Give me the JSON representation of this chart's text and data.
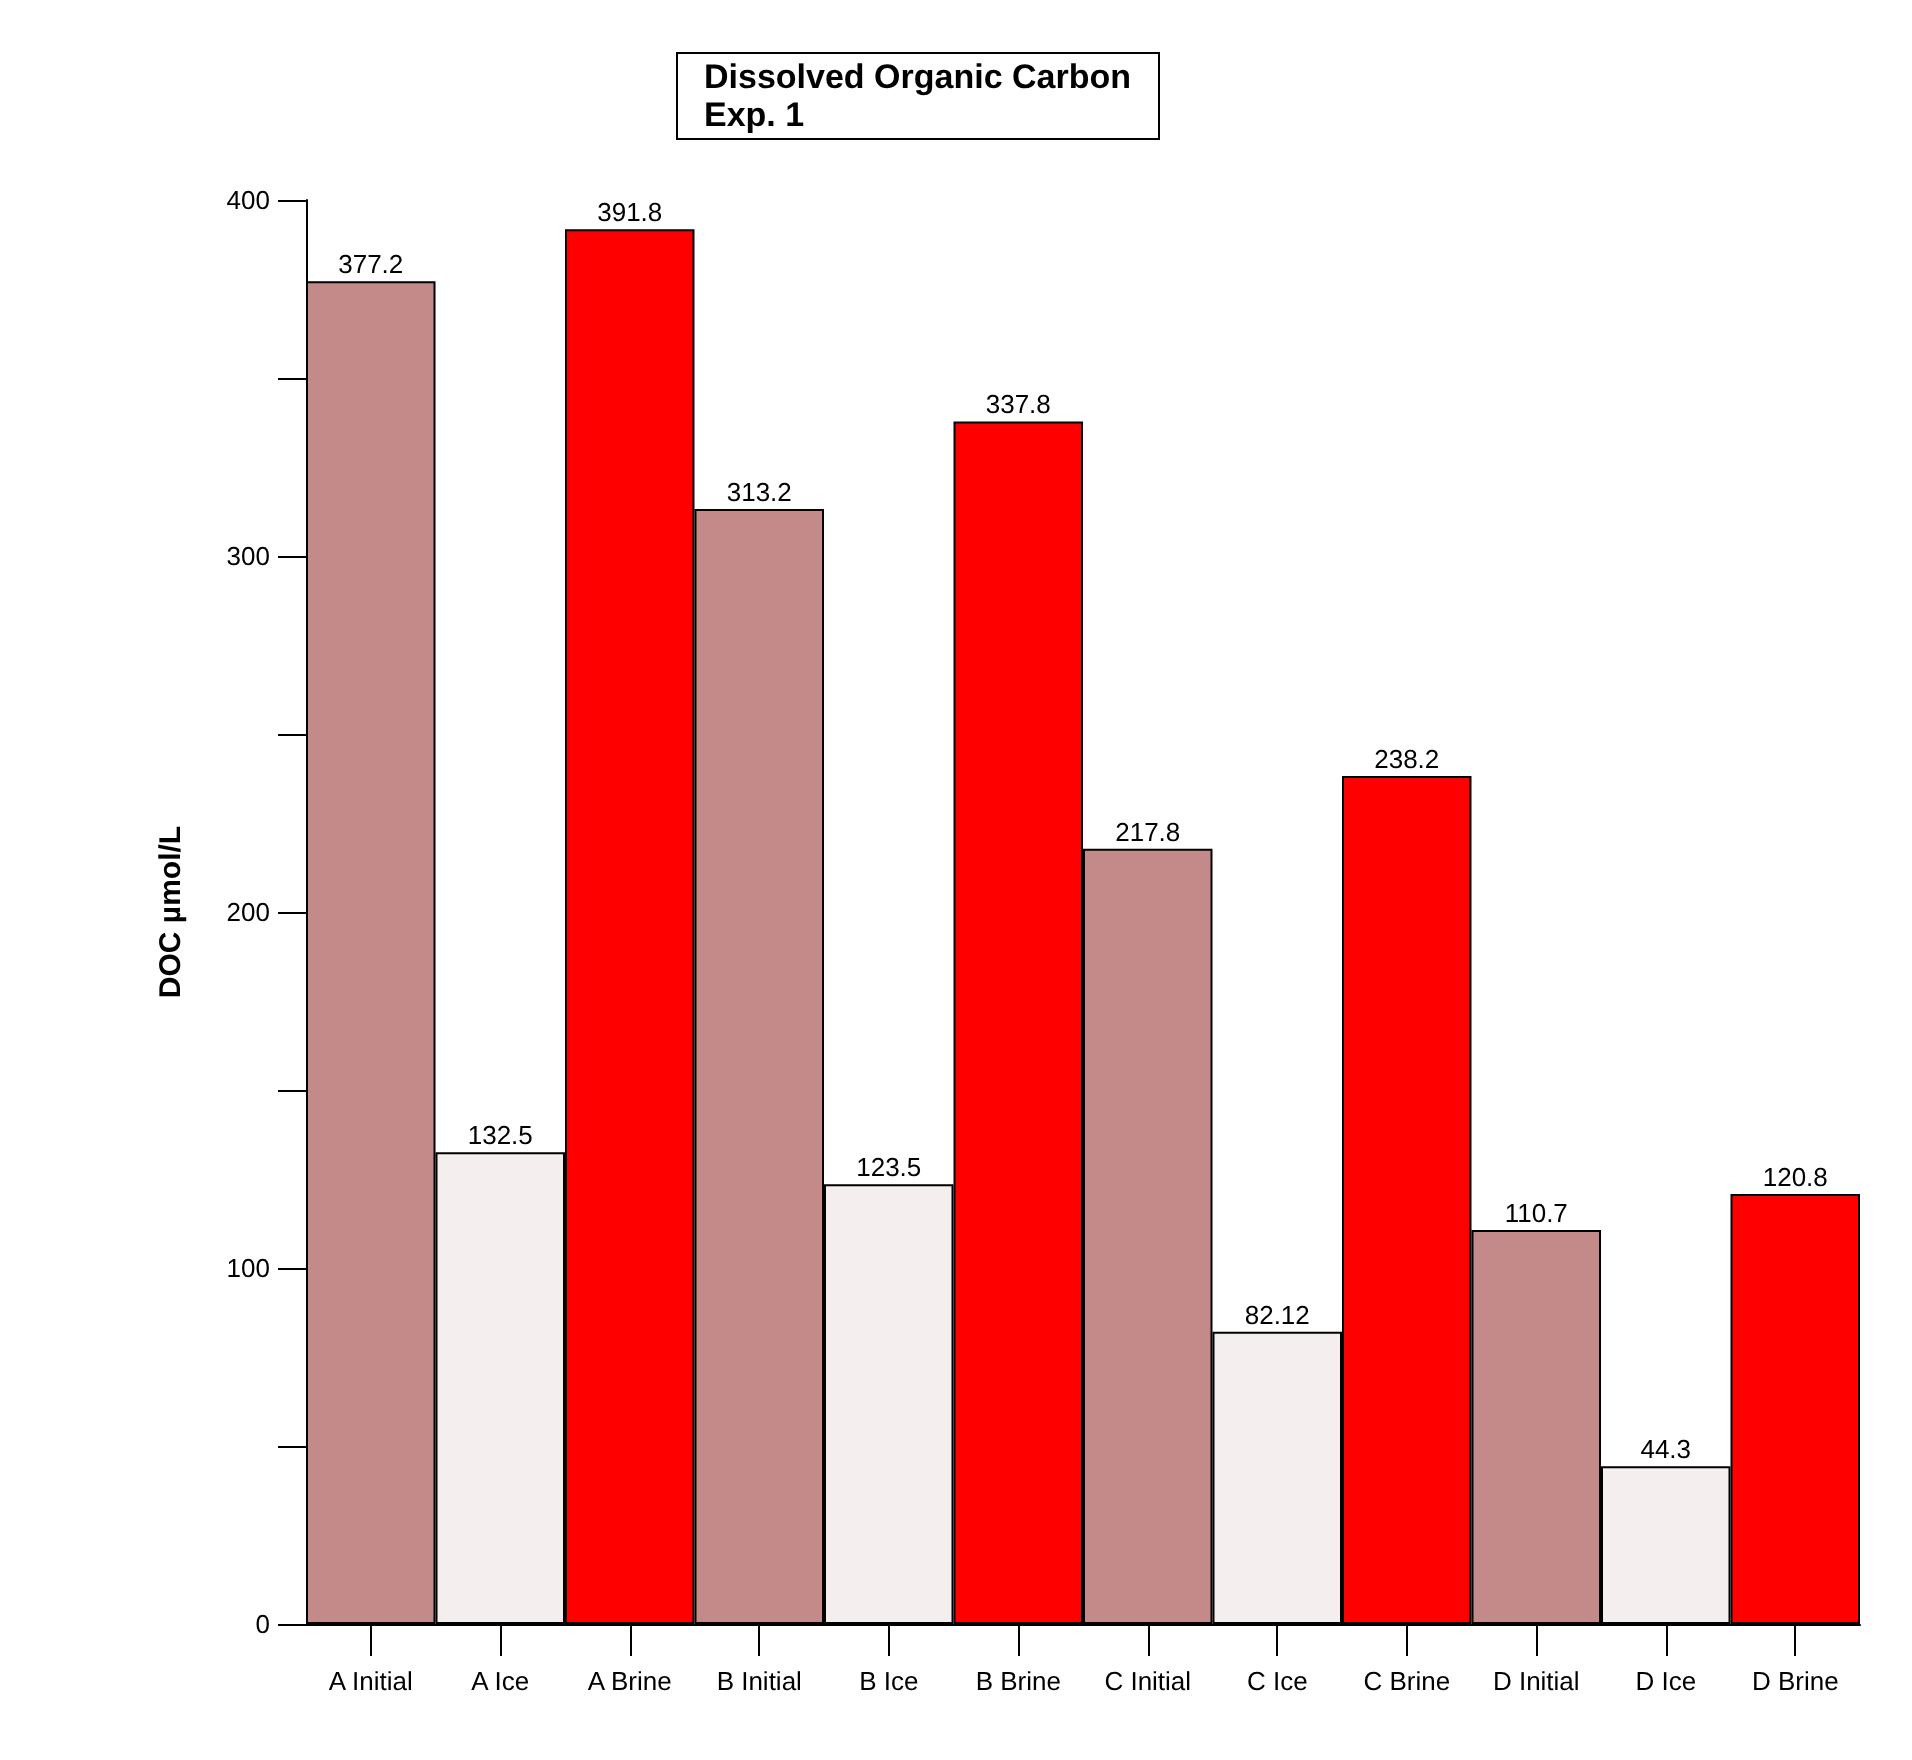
{
  "chart_data": {
    "type": "bar",
    "title": "Dissolved Organic Carbon",
    "subtitle": "Exp. 1",
    "ylabel": "DOC µmol/L",
    "categories": [
      "A Initial",
      "A Ice",
      "A Brine",
      "B Initial",
      "B Ice",
      "B Brine",
      "C Initial",
      "C Ice",
      "C Brine",
      "D Initial",
      "D Ice",
      "D Brine"
    ],
    "values": [
      377.2,
      132.5,
      391.8,
      313.2,
      123.5,
      337.8,
      217.8,
      82.12,
      238.2,
      110.7,
      44.3,
      120.8
    ],
    "colors": [
      "#c48a8a",
      "#f4eeee",
      "#ff0000",
      "#c48a8a",
      "#f4eeee",
      "#ff0000",
      "#c48a8a",
      "#f4eeee",
      "#ff0000",
      "#c48a8a",
      "#f4eeee",
      "#ff0000"
    ],
    "ylim": [
      0,
      400
    ],
    "yticks": [
      0,
      {
        "value": 50,
        "label": null
      },
      100,
      {
        "value": 150,
        "label": null
      },
      200,
      {
        "value": 250,
        "label": null
      },
      300,
      {
        "value": 350,
        "label": null
      },
      400
    ],
    "data_labels": true,
    "grid": false
  }
}
